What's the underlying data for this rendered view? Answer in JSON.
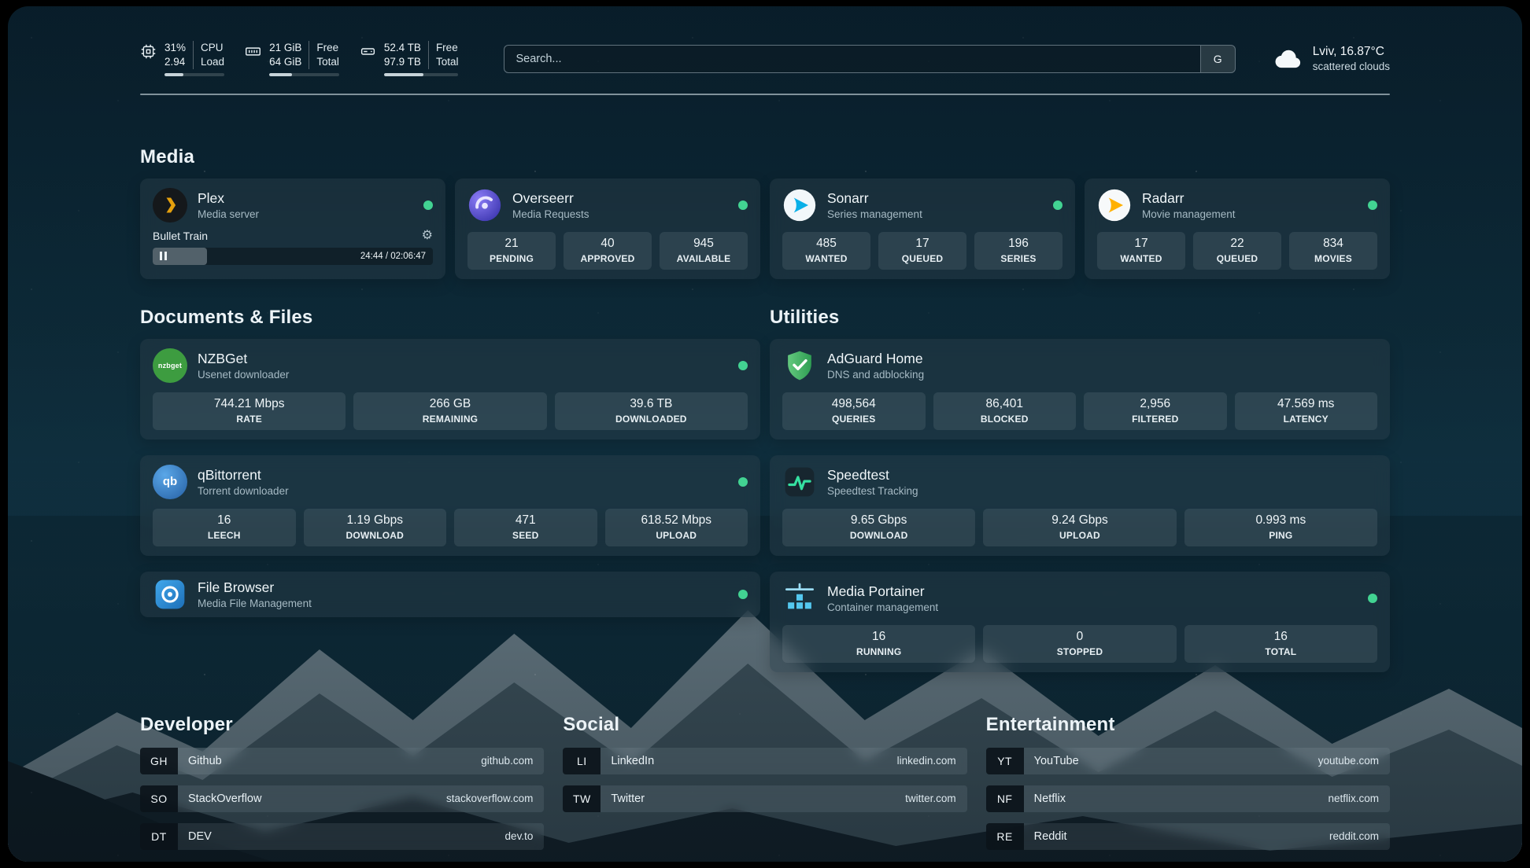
{
  "topbar": {
    "cpu": {
      "value1": "31%",
      "value2": "2.94",
      "label1": "CPU",
      "label2": "Load",
      "bar_percent": 31
    },
    "ram": {
      "value1": "21 GiB",
      "value2": "64 GiB",
      "label1": "Free",
      "label2": "Total",
      "bar_percent": 33
    },
    "disk": {
      "value1": "52.4 TB",
      "value2": "97.9 TB",
      "label1": "Free",
      "label2": "Total",
      "bar_percent": 53
    },
    "search": {
      "placeholder": "Search...",
      "engine_button": "G"
    },
    "weather": {
      "location": "Lviv, 16.87°C",
      "condition": "scattered clouds"
    }
  },
  "sections": {
    "media": {
      "title": "Media",
      "apps": [
        {
          "name": "Plex",
          "subtitle": "Media server",
          "icon": "plex-icon",
          "status": "online",
          "player": {
            "track": "Bullet Train",
            "time": "24:44 / 02:06:47",
            "progress_percent": 19.5
          }
        },
        {
          "name": "Overseerr",
          "subtitle": "Media Requests",
          "icon": "overseerr-icon",
          "status": "online",
          "stats": [
            {
              "value": "21",
              "label": "PENDING"
            },
            {
              "value": "40",
              "label": "APPROVED"
            },
            {
              "value": "945",
              "label": "AVAILABLE"
            }
          ]
        },
        {
          "name": "Sonarr",
          "subtitle": "Series management",
          "icon": "sonarr-icon",
          "status": "online",
          "stats": [
            {
              "value": "485",
              "label": "WANTED"
            },
            {
              "value": "17",
              "label": "QUEUED"
            },
            {
              "value": "196",
              "label": "SERIES"
            }
          ]
        },
        {
          "name": "Radarr",
          "subtitle": "Movie management",
          "icon": "radarr-icon",
          "status": "online",
          "stats": [
            {
              "value": "17",
              "label": "WANTED"
            },
            {
              "value": "22",
              "label": "QUEUED"
            },
            {
              "value": "834",
              "label": "MOVIES"
            }
          ]
        }
      ]
    },
    "documents": {
      "title": "Documents & Files",
      "apps": [
        {
          "name": "NZBGet",
          "subtitle": "Usenet downloader",
          "icon": "nzbget-icon",
          "status": "online",
          "stats": [
            {
              "value": "744.21 Mbps",
              "label": "RATE"
            },
            {
              "value": "266 GB",
              "label": "REMAINING"
            },
            {
              "value": "39.6 TB",
              "label": "DOWNLOADED"
            }
          ]
        },
        {
          "name": "qBittorrent",
          "subtitle": "Torrent downloader",
          "icon": "qbittorrent-icon",
          "status": "online",
          "stats": [
            {
              "value": "16",
              "label": "LEECH"
            },
            {
              "value": "1.19 Gbps",
              "label": "DOWNLOAD"
            },
            {
              "value": "471",
              "label": "SEED"
            },
            {
              "value": "618.52 Mbps",
              "label": "UPLOAD"
            }
          ]
        },
        {
          "name": "File Browser",
          "subtitle": "Media File Management",
          "icon": "filebrowser-icon",
          "status": "online"
        }
      ]
    },
    "utilities": {
      "title": "Utilities",
      "apps": [
        {
          "name": "AdGuard Home",
          "subtitle": "DNS and adblocking",
          "icon": "adguard-icon",
          "stats": [
            {
              "value": "498,564",
              "label": "QUERIES"
            },
            {
              "value": "86,401",
              "label": "BLOCKED"
            },
            {
              "value": "2,956",
              "label": "FILTERED"
            },
            {
              "value": "47.569 ms",
              "label": "LATENCY"
            }
          ]
        },
        {
          "name": "Speedtest",
          "subtitle": "Speedtest Tracking",
          "icon": "speedtest-icon",
          "stats": [
            {
              "value": "9.65 Gbps",
              "label": "DOWNLOAD"
            },
            {
              "value": "9.24 Gbps",
              "label": "UPLOAD"
            },
            {
              "value": "0.993 ms",
              "label": "PING"
            }
          ]
        },
        {
          "name": "Media Portainer",
          "subtitle": "Container management",
          "icon": "portainer-icon",
          "status": "online",
          "stats": [
            {
              "value": "16",
              "label": "RUNNING"
            },
            {
              "value": "0",
              "label": "STOPPED"
            },
            {
              "value": "16",
              "label": "TOTAL"
            }
          ]
        }
      ]
    }
  },
  "icon_labels": {
    "nzbget": "nzbget",
    "qbittorrent": "qb"
  },
  "bookmarks": [
    {
      "title": "Developer",
      "links": [
        {
          "abbr": "GH",
          "name": "Github",
          "url": "github.com"
        },
        {
          "abbr": "SO",
          "name": "StackOverflow",
          "url": "stackoverflow.com"
        },
        {
          "abbr": "DT",
          "name": "DEV",
          "url": "dev.to"
        }
      ]
    },
    {
      "title": "Social",
      "links": [
        {
          "abbr": "LI",
          "name": "LinkedIn",
          "url": "linkedin.com"
        },
        {
          "abbr": "TW",
          "name": "Twitter",
          "url": "twitter.com"
        }
      ]
    },
    {
      "title": "Entertainment",
      "links": [
        {
          "abbr": "YT",
          "name": "YouTube",
          "url": "youtube.com"
        },
        {
          "abbr": "NF",
          "name": "Netflix",
          "url": "netflix.com"
        },
        {
          "abbr": "RE",
          "name": "Reddit",
          "url": "reddit.com"
        }
      ]
    }
  ],
  "colors": {
    "status_online": "#42d392",
    "accent_plex": "#e5a00d",
    "accent_overseerr": "#5f4fd1",
    "accent_sonarr": "#0ab0e8",
    "accent_radarr": "#ffb000",
    "accent_nzbget": "#3d9c40",
    "accent_qbittorrent": "#2f67ba",
    "accent_filebrowser": "#2f8fd8",
    "accent_adguard": "#46b15e",
    "accent_speedtest": "#35e0a1",
    "accent_portainer": "#54c8ef"
  }
}
